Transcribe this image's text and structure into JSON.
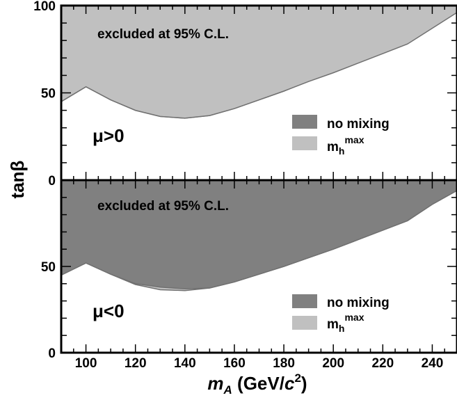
{
  "chart_data": [
    {
      "type": "area",
      "panel": "top",
      "annotation": "excluded at 95% C.L.",
      "condition_label": "μ>0",
      "legend": [
        {
          "label": "no mixing",
          "color": "#808080"
        },
        {
          "label_main": "m",
          "label_sub": "h",
          "label_sup": "max",
          "color": "#c0c0c0"
        }
      ],
      "legend_position": "right-middle",
      "xlim": [
        90,
        250
      ],
      "ylim": [
        0,
        100
      ],
      "y_ticks": [
        "0",
        "50",
        "100"
      ],
      "series": [
        {
          "name": "no mixing",
          "color": "#808080",
          "x": [
            90,
            100,
            110,
            120,
            130,
            140,
            150,
            160,
            170,
            180,
            190,
            200,
            210,
            220,
            230,
            240,
            250
          ],
          "y": [
            45,
            53.5,
            46,
            40,
            36.5,
            35.5,
            37,
            41,
            46,
            51,
            57,
            62,
            68,
            74,
            80,
            89,
            98
          ]
        },
        {
          "name": "m_h^max",
          "color": "#c0c0c0",
          "x": [
            90,
            100,
            110,
            120,
            130,
            140,
            150,
            160,
            170,
            180,
            190,
            200,
            210,
            220,
            230,
            240,
            250
          ],
          "y": [
            45,
            53.5,
            46,
            40,
            36.5,
            35.5,
            37,
            41,
            46,
            51,
            56.5,
            61.5,
            67,
            72.5,
            78,
            87,
            96
          ]
        }
      ]
    },
    {
      "type": "area",
      "panel": "bottom",
      "annotation": "excluded at 95% C.L.",
      "condition_label": "μ<0",
      "legend": [
        {
          "label": "no mixing",
          "color": "#808080"
        },
        {
          "label_main": "m",
          "label_sub": "h",
          "label_sup": "max",
          "color": "#c0c0c0"
        }
      ],
      "legend_position": "right-middle",
      "xlim": [
        90,
        250
      ],
      "ylim": [
        0,
        100
      ],
      "y_ticks": [
        "0",
        "50"
      ],
      "series": [
        {
          "name": "no mixing",
          "color": "#808080",
          "x": [
            90,
            100,
            110,
            120,
            130,
            140,
            150,
            160,
            170,
            180,
            190,
            200,
            210,
            220,
            230,
            240,
            250
          ],
          "y": [
            45,
            52,
            45.5,
            40,
            38,
            37,
            37.5,
            41,
            45.5,
            50,
            55,
            60,
            65.5,
            71,
            76.5,
            86,
            94
          ]
        },
        {
          "name": "m_h^max",
          "color": "#c0c0c0",
          "x": [
            90,
            100,
            110,
            120,
            130,
            140,
            150,
            160,
            170,
            180,
            190,
            200,
            210,
            220,
            230,
            240,
            250
          ],
          "y": [
            45,
            52,
            45.5,
            39.5,
            36.5,
            36,
            37.5,
            41,
            45.5,
            50,
            55,
            60,
            65.5,
            71,
            76.5,
            86,
            94
          ]
        }
      ]
    }
  ],
  "axes": {
    "ylabel": "tanβ",
    "xlabel_main": "m",
    "xlabel_sub": "A",
    "xlabel_rest": " (GeV/",
    "xlabel_c": "c",
    "xlabel_sup": "2",
    "xlabel_close": ")",
    "x_ticks": [
      "100",
      "120",
      "140",
      "160",
      "180",
      "200",
      "220",
      "240"
    ]
  }
}
